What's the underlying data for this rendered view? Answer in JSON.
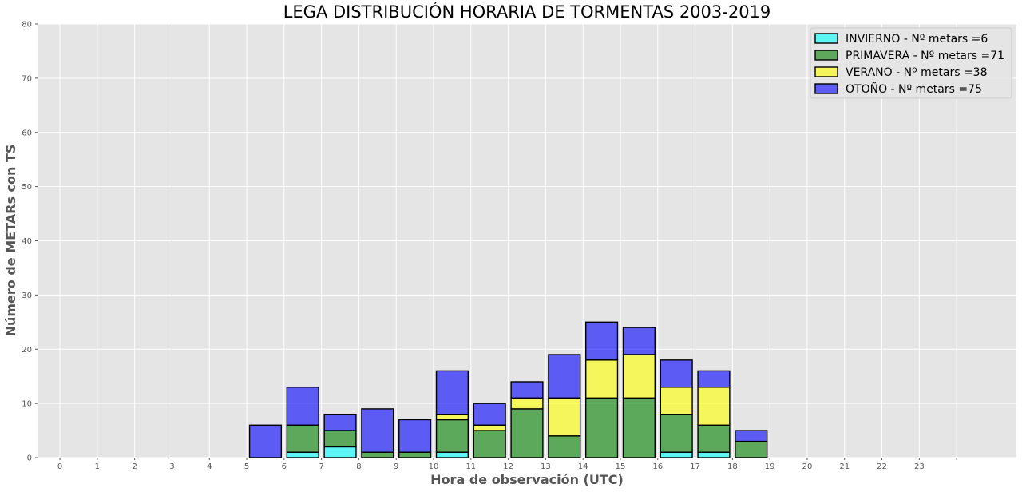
{
  "chart_data": {
    "type": "bar",
    "stacked": true,
    "title": "LEGA DISTRIBUCIÓN HORARIA DE TORMENTAS 2003-2019",
    "xlabel": "Hora de observación (UTC)",
    "ylabel": "Número de METARs con TS",
    "ylim": [
      0,
      80
    ],
    "xlim": [
      -1.1,
      25.1
    ],
    "yticks": [
      0,
      10,
      20,
      30,
      40,
      50,
      60,
      70,
      80
    ],
    "xticks": [
      "0",
      "1",
      "2",
      "3",
      "4",
      "5",
      "6",
      "7",
      "8",
      "9",
      "10",
      "11",
      "12",
      "13",
      "14",
      "15",
      "16",
      "17",
      "18",
      "19",
      "20",
      "21",
      "22",
      "23"
    ],
    "grid": true,
    "legend_position": "top-right",
    "bar_centers": [
      0,
      1,
      2,
      3,
      4,
      5,
      6,
      7,
      8,
      9,
      10,
      11,
      12,
      13,
      14,
      15,
      16,
      17,
      18,
      19,
      20,
      21,
      22,
      23
    ],
    "series": [
      {
        "name": "INVIERNO - Nº metars =6",
        "color": "#00ffff",
        "values": [
          0,
          0,
          0,
          0,
          0,
          0,
          1,
          2,
          0,
          0,
          1,
          0,
          0,
          0,
          0,
          0,
          1,
          1,
          0,
          0,
          0,
          0,
          0,
          0
        ]
      },
      {
        "name": "PRIMAVERA - Nº metars =71",
        "color": "#008000",
        "values": [
          0,
          0,
          0,
          0,
          0,
          0,
          5,
          3,
          1,
          1,
          6,
          5,
          9,
          4,
          11,
          11,
          7,
          5,
          3,
          0,
          0,
          0,
          0,
          0
        ]
      },
      {
        "name": "VERANO - Nº metars =38",
        "color": "#ffff00",
        "values": [
          0,
          0,
          0,
          0,
          0,
          0,
          0,
          0,
          0,
          0,
          1,
          1,
          2,
          7,
          7,
          8,
          5,
          7,
          0,
          0,
          0,
          0,
          0,
          0
        ]
      },
      {
        "name": "OTOÑO - Nº metars =75",
        "color": "#0000ff",
        "values": [
          0,
          0,
          0,
          0,
          0,
          6,
          7,
          3,
          8,
          6,
          8,
          4,
          3,
          8,
          7,
          5,
          5,
          3,
          2,
          0,
          0,
          0,
          0,
          0
        ]
      }
    ]
  }
}
